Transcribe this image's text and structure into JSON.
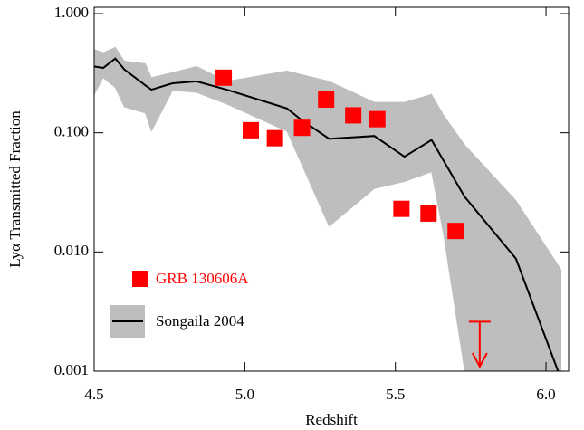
{
  "chart_data": {
    "type": "line",
    "x_label": "Redshift",
    "y_label": "Lyα Transmitted Fraction",
    "xlim": [
      4.5,
      6.075
    ],
    "ylim": [
      0.001,
      1.13
    ],
    "log_y": true,
    "xticks": [
      4.5,
      {
        "value": 5,
        "label": "5.0"
      },
      5.5,
      {
        "value": 6,
        "label": "6.0"
      }
    ],
    "yticks": [
      {
        "value": 1,
        "label": "1.000"
      },
      {
        "value": 0.1,
        "label": "0.100"
      },
      {
        "value": 0.01,
        "label": "0.010"
      },
      {
        "value": 0.001,
        "label": "0.001"
      }
    ],
    "series": [
      {
        "name": "GRB 130606A",
        "color": "#ff0000",
        "marker": "square",
        "x": [
          4.93,
          5.02,
          5.1,
          5.19,
          5.27,
          5.36,
          5.44,
          5.52,
          5.61,
          5.7
        ],
        "values": [
          0.29,
          0.105,
          0.09,
          0.11,
          0.19,
          0.14,
          0.13,
          0.023,
          0.021,
          0.015
        ]
      },
      {
        "name": "Songaila 2004",
        "color": "#000000",
        "band_color": "#bebebe",
        "x": [
          4.5,
          4.53,
          4.57,
          4.6,
          4.67,
          4.69,
          4.76,
          4.84,
          4.94,
          5.14,
          5.19,
          5.28,
          5.43,
          5.53,
          5.62,
          5.73,
          5.9,
          6.04
        ],
        "values": [
          0.36,
          0.35,
          0.42,
          0.34,
          0.25,
          0.23,
          0.26,
          0.27,
          0.23,
          0.16,
          0.127,
          0.089,
          0.094,
          0.063,
          0.087,
          0.029,
          0.0088,
          0.001
        ],
        "band_x": [
          4.5,
          4.53,
          4.57,
          4.6,
          4.67,
          4.69,
          4.76,
          4.84,
          4.94,
          5.14,
          5.28,
          5.43,
          5.53,
          5.62,
          5.66,
          5.73,
          5.9,
          6.05
        ],
        "upper": [
          0.5,
          0.47,
          0.52,
          0.4,
          0.38,
          0.29,
          0.32,
          0.36,
          0.27,
          0.33,
          0.27,
          0.18,
          0.18,
          0.21,
          0.14,
          0.079,
          0.027,
          0.0071
        ],
        "lower": [
          0.21,
          0.29,
          0.24,
          0.165,
          0.146,
          0.103,
          0.226,
          0.218,
          0.174,
          0.103,
          0.0164,
          0.034,
          0.039,
          0.047,
          0.014,
          0.001,
          0.001,
          0.001
        ]
      }
    ],
    "upper_limits": {
      "color": "#ff0000",
      "x": [
        5.78
      ],
      "values": [
        0.0026
      ]
    }
  }
}
